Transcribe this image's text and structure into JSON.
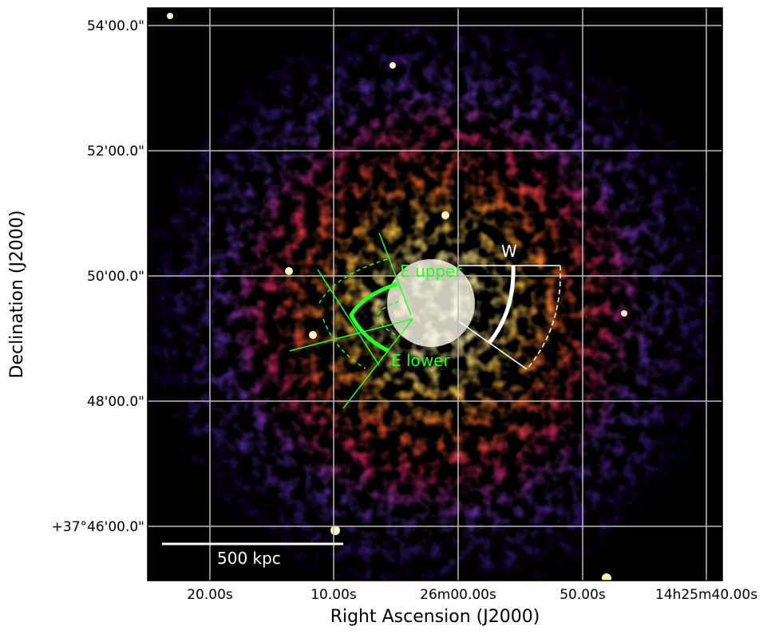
{
  "image": {
    "x_axis": {
      "label": "Right Ascension (J2000)",
      "ticks": [
        "20.00s",
        "10.00s",
        "26m00.00s",
        "50.00s",
        "14h25m40.00s"
      ]
    },
    "y_axis": {
      "label": "Declination (J2000)",
      "ticks": [
        "54'00.0\"",
        "52'00.0\"",
        "50'00.0\"",
        "48'00.0\"",
        "+37°46'00.0\""
      ]
    },
    "annotations": {
      "e_upper": "E upper",
      "e_lower": "E lower",
      "w": "W",
      "scale_bar": "500 kpc"
    }
  }
}
